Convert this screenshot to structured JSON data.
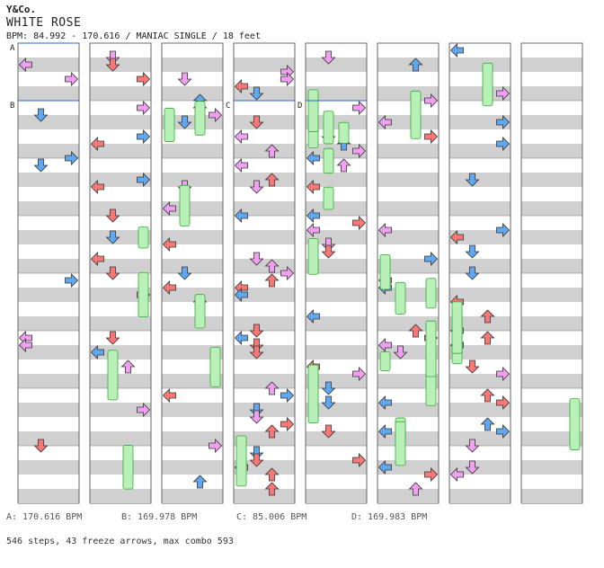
{
  "header": {
    "brand": "Y&Co.",
    "song_title": "WH1TE ROSE",
    "info": "BPM: 84.992 - 170.616 / MANIAC SINGLE / 18 feet"
  },
  "bpm_markers": [
    {
      "label": "A",
      "value": "A: 170.616 BPM"
    },
    {
      "label": "B",
      "value": "B: 169.978 BPM"
    },
    {
      "label": "C",
      "value": "C: 85.006 BPM"
    },
    {
      "label": "D",
      "value": "D: 169.983 BPM"
    }
  ],
  "summary": "546 steps, 43 freeze arrows, max combo 593",
  "colors": {
    "quarter": "#f87878",
    "eighth": "#60a8f0",
    "sixteenth": "#f0a0f0",
    "third": "#f8f050",
    "freeze": "#b8f0b8",
    "stripe": "#d0d0d0"
  },
  "chart_data": {
    "type": "step-chart",
    "columns": 8,
    "lanes": [
      "left",
      "down",
      "up",
      "right"
    ],
    "steps": 546,
    "freeze_arrows": 43,
    "max_combo": 593
  }
}
